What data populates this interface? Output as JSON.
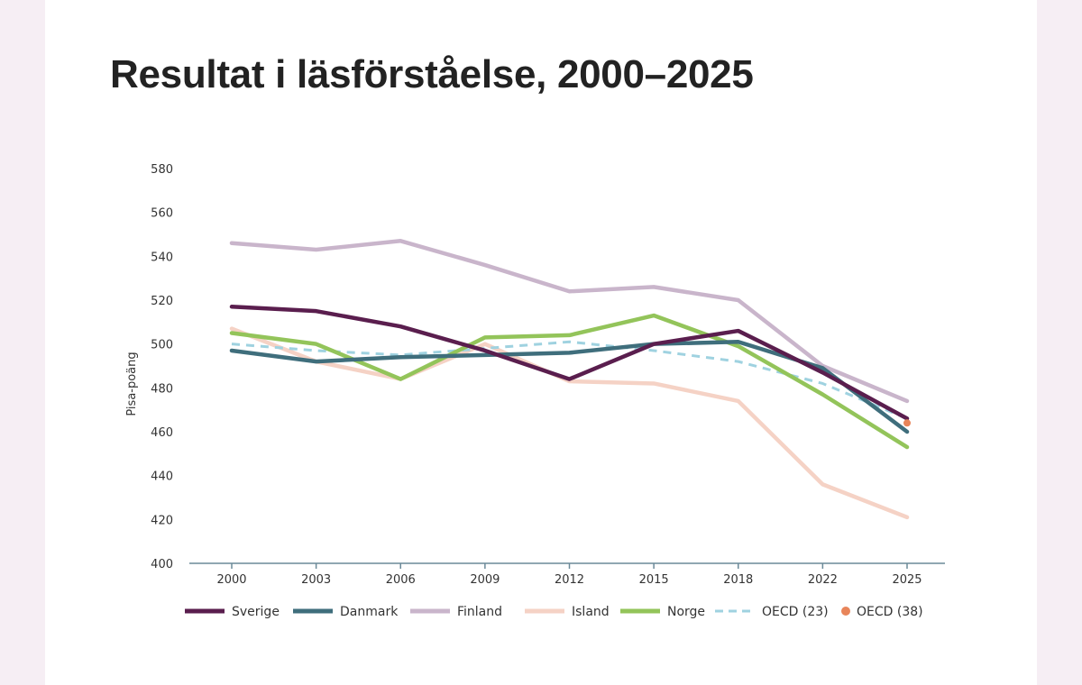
{
  "page": {
    "title": "Resultat i läsförståelse, 2000–2025"
  },
  "chart_data": {
    "type": "line",
    "title": "Resultat i läsförståelse, 2000–2025",
    "xlabel": "",
    "ylabel": "Pisa-poäng",
    "categories": [
      "2000",
      "2003",
      "2006",
      "2009",
      "2012",
      "2015",
      "2018",
      "2022",
      "2025"
    ],
    "ylim": [
      400,
      580
    ],
    "yticks": [
      400,
      420,
      440,
      460,
      480,
      500,
      520,
      540,
      560,
      580
    ],
    "grid": false,
    "legend_position": "bottom",
    "series": [
      {
        "name": "Sverige",
        "color": "#5a1e4e",
        "dashed": false,
        "values": [
          517,
          515,
          508,
          497,
          484,
          500,
          506,
          487,
          466
        ]
      },
      {
        "name": "Danmark",
        "color": "#3f6e7c",
        "dashed": false,
        "values": [
          497,
          492,
          494,
          495,
          496,
          500,
          501,
          489,
          460
        ]
      },
      {
        "name": "Finland",
        "color": "#c9b5cb",
        "dashed": false,
        "values": [
          546,
          543,
          547,
          536,
          524,
          526,
          520,
          490,
          474
        ]
      },
      {
        "name": "Island",
        "color": "#f5d2c5",
        "dashed": false,
        "values": [
          507,
          492,
          484,
          500,
          483,
          482,
          474,
          436,
          421
        ]
      },
      {
        "name": "Norge",
        "color": "#93c45a",
        "dashed": false,
        "values": [
          505,
          500,
          484,
          503,
          504,
          513,
          499,
          477,
          453
        ]
      },
      {
        "name": "OECD (23)",
        "color": "#9fd2e0",
        "dashed": true,
        "values": [
          500,
          497,
          495,
          498,
          501,
          497,
          492,
          482,
          466
        ]
      },
      {
        "name": "OECD (38)",
        "color": "#e8855a",
        "marker": "dot",
        "x": [
          "2025"
        ],
        "values": [
          464
        ]
      }
    ]
  }
}
